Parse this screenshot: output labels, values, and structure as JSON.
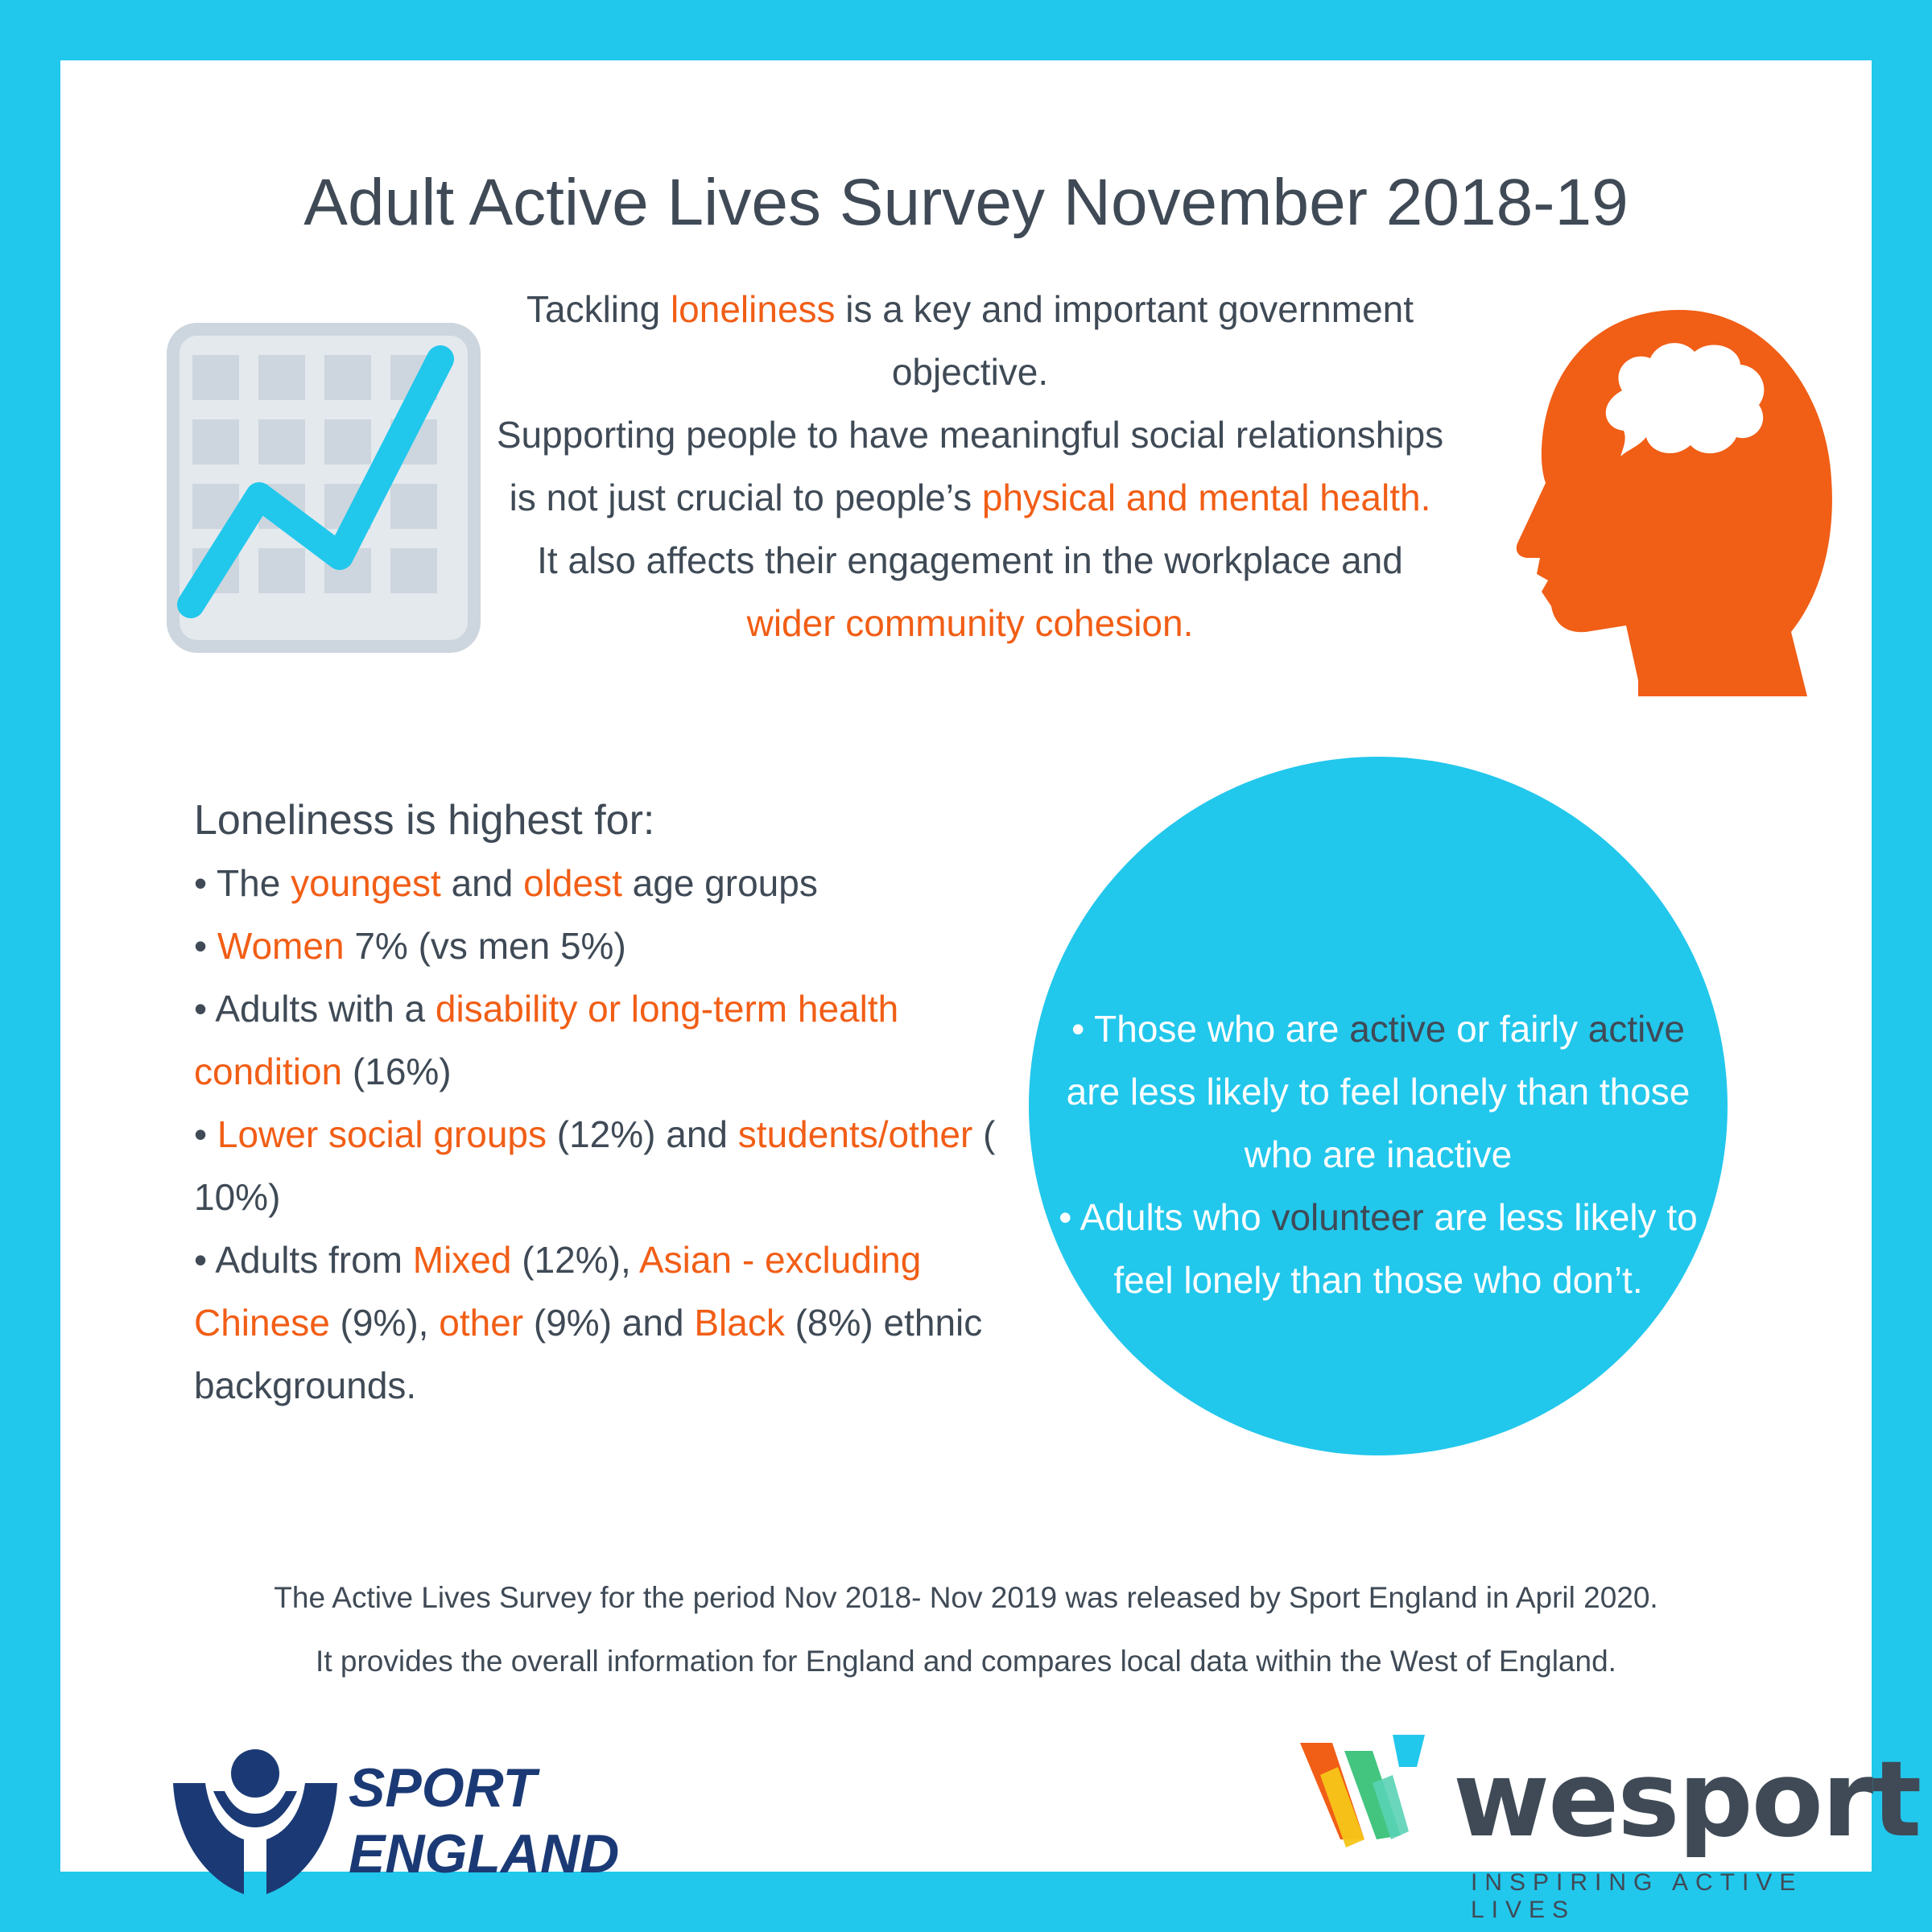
{
  "title": "Adult Active Lives Survey November 2018-19",
  "colors": {
    "frame": "#22c7ec",
    "highlight": "#f15e16",
    "text": "#3f4a56",
    "navy": "#1b3a75"
  },
  "icons": {
    "left": "line-chart-icon",
    "right": "head-thought-icon"
  },
  "intro": {
    "p1": [
      "Tackling ",
      "loneliness",
      " is a key and important government objective."
    ],
    "p2": [
      "Supporting people to have meaningful social relationships is not just crucial to people’s ",
      "physical and mental health.",
      " It also affects their engagement in the workplace and ",
      "wider community cohesion."
    ]
  },
  "list": {
    "heading": "Loneliness is highest for:",
    "items": [
      [
        "• The ",
        "youngest",
        " and ",
        "oldest",
        " age groups"
      ],
      [
        "• ",
        "Women",
        " 7% (vs men 5%)"
      ],
      [
        "• Adults with a ",
        "disability or long-term health condition",
        " (16%)"
      ],
      [
        "• ",
        "Lower social groups",
        " (12%) and ",
        "students/other",
        " ( 10%)"
      ],
      [
        "• Adults from ",
        "Mixed",
        " (12%), ",
        "Asian - excluding Chinese",
        " (9%), ",
        "other",
        " (9%) and ",
        "Black",
        " (8%) ethnic backgrounds."
      ]
    ]
  },
  "circle": {
    "p1": [
      "• Those who are ",
      "active",
      " or fairly ",
      "active",
      " are less likely to feel lonely than those who are inactive"
    ],
    "p2": [
      "• Adults who ",
      "volunteer",
      " are less likely to feel lonely than those who don’t."
    ]
  },
  "footnote": {
    "line1": "The Active Lives Survey for the period Nov 2018- Nov 2019 was released by Sport England in April 2020.",
    "line2": "It provides the overall information for England and compares local data within the West of England."
  },
  "logos": {
    "sport_england": {
      "line1": "SPORT",
      "line2": "ENGLAND",
      "icon": "sport-england-figure-icon"
    },
    "wesport": {
      "name": "wesport",
      "tagline": "INSPIRING ACTIVE LIVES",
      "icon": "wesport-w-icon"
    }
  }
}
